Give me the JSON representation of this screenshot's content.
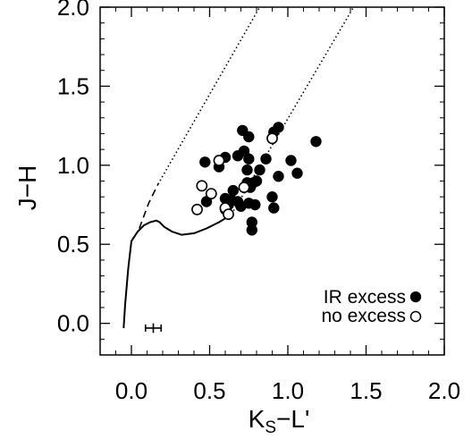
{
  "chart_data": {
    "type": "scatter",
    "xlabel": "K",
    "xlabel_sub": "S",
    "xlabel_suffix": "−L'",
    "ylabel": "J−H",
    "xlim": [
      -0.2,
      2.0
    ],
    "ylim": [
      -0.2,
      2.0
    ],
    "xticks": [
      {
        "value": 0.0,
        "label": "0.0"
      },
      {
        "value": 0.5,
        "label": "0.5"
      },
      {
        "value": 1.0,
        "label": "1.0"
      },
      {
        "value": 1.5,
        "label": "1.5"
      },
      {
        "value": 2.0,
        "label": "2.0"
      }
    ],
    "yticks": [
      {
        "value": 0.0,
        "label": "0.0"
      },
      {
        "value": 0.5,
        "label": "0.5"
      },
      {
        "value": 1.0,
        "label": "1.0"
      },
      {
        "value": 1.5,
        "label": "1.5"
      },
      {
        "value": 2.0,
        "label": "2.0"
      }
    ],
    "grid": false,
    "legend_position": "bottom-right",
    "series": [
      {
        "name": "IR excess",
        "marker": "filled-circle",
        "points": [
          [
            0.71,
            1.22
          ],
          [
            0.75,
            1.18
          ],
          [
            0.72,
            1.09
          ],
          [
            0.91,
            1.21
          ],
          [
            0.94,
            1.24
          ],
          [
            1.18,
            1.15
          ],
          [
            0.47,
            1.02
          ],
          [
            0.6,
            1.05
          ],
          [
            0.68,
            1.06
          ],
          [
            0.75,
            1.04
          ],
          [
            0.74,
            0.97
          ],
          [
            0.86,
            1.04
          ],
          [
            1.02,
            1.03
          ],
          [
            0.56,
            0.99
          ],
          [
            0.82,
            0.97
          ],
          [
            0.74,
            0.89
          ],
          [
            0.78,
            0.89
          ],
          [
            0.94,
            0.93
          ],
          [
            1.06,
            0.95
          ],
          [
            0.65,
            0.84
          ],
          [
            0.76,
            0.86
          ],
          [
            0.8,
            0.9
          ],
          [
            0.9,
            0.8
          ],
          [
            0.6,
            0.79
          ],
          [
            0.64,
            0.78
          ],
          [
            0.68,
            0.77
          ],
          [
            0.62,
            0.75
          ],
          [
            0.7,
            0.74
          ],
          [
            0.75,
            0.76
          ],
          [
            0.79,
            0.75
          ],
          [
            0.48,
            0.77
          ],
          [
            0.6,
            0.72
          ],
          [
            0.91,
            0.73
          ],
          [
            0.77,
            0.64
          ],
          [
            0.77,
            0.59
          ]
        ]
      },
      {
        "name": "no excess",
        "marker": "open-circle",
        "points": [
          [
            0.9,
            1.17
          ],
          [
            0.56,
            1.03
          ],
          [
            0.45,
            0.87
          ],
          [
            0.51,
            0.82
          ],
          [
            0.72,
            0.86
          ],
          [
            0.42,
            0.72
          ],
          [
            0.6,
            0.73
          ],
          [
            0.62,
            0.69
          ]
        ]
      }
    ],
    "curves": [
      {
        "name": "dwarf locus",
        "style": "solid",
        "points": [
          [
            -0.05,
            -0.03
          ],
          [
            -0.04,
            0.12
          ],
          [
            -0.02,
            0.35
          ],
          [
            0.0,
            0.52
          ],
          [
            0.04,
            0.58
          ],
          [
            0.08,
            0.62
          ],
          [
            0.12,
            0.64
          ],
          [
            0.16,
            0.65
          ],
          [
            0.18,
            0.64
          ],
          [
            0.21,
            0.61
          ],
          [
            0.26,
            0.58
          ],
          [
            0.32,
            0.56
          ],
          [
            0.4,
            0.57
          ],
          [
            0.48,
            0.6
          ],
          [
            0.56,
            0.64
          ],
          [
            0.61,
            0.67
          ],
          [
            0.64,
            0.69
          ]
        ]
      },
      {
        "name": "giant branch",
        "style": "dashed",
        "points": [
          [
            0.05,
            0.6
          ],
          [
            0.11,
            0.76
          ],
          [
            0.17,
            0.88
          ]
        ]
      },
      {
        "name": "reddening band upper",
        "style": "dotted",
        "points": [
          [
            0.17,
            0.88
          ],
          [
            0.82,
            2.0
          ]
        ]
      },
      {
        "name": "reddening band lower",
        "style": "dotted",
        "points": [
          [
            0.64,
            0.69
          ],
          [
            1.42,
            2.0
          ]
        ]
      }
    ],
    "error_bar": {
      "x": 0.14,
      "y": -0.03,
      "xerr": 0.05,
      "yerr": 0.03
    },
    "legend": [
      {
        "label": "IR excess",
        "marker": "filled-circle"
      },
      {
        "label": "no excess",
        "marker": "open-circle"
      }
    ],
    "colors": {
      "foreground": "#000000",
      "background": "#ffffff"
    }
  }
}
